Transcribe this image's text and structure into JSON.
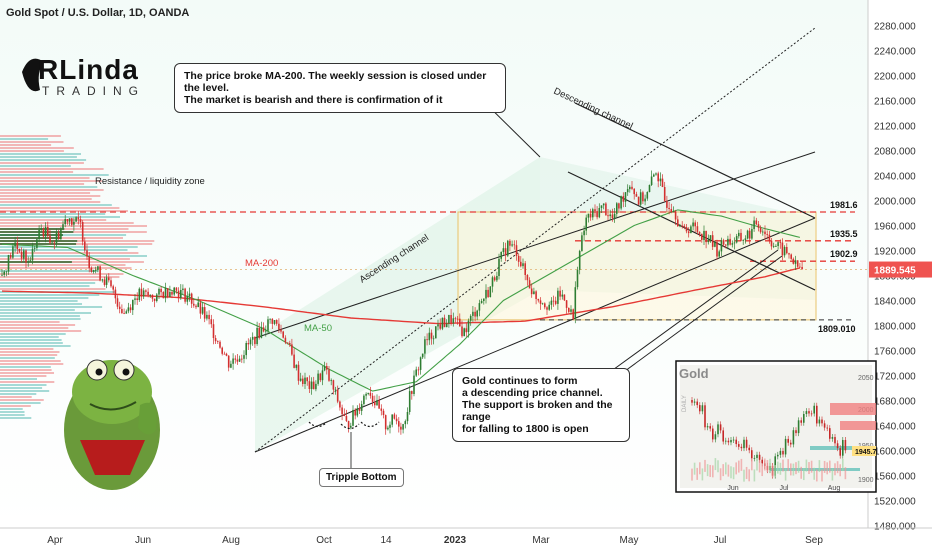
{
  "header": {
    "symbol_line": "Gold Spot / U.S. Dollar, 1D, OANDA"
  },
  "logo": {
    "main": "RLinda",
    "sub": "TRADING"
  },
  "notes": {
    "top": "The price broke MA-200. The weekly session is closed under the level.\nThe market is bearish and there is confirmation of it",
    "bottom": "Gold continues to form\na descending price channel.\nThe support is broken and the range\nfor falling to 1800 is open",
    "tripple": "Tripple Bottom"
  },
  "labels": {
    "resistance": "Resistance / liquidity zone",
    "ma200": "MA-200",
    "ma50": "MA-50",
    "ascending": "Ascending channel",
    "descending": "Descending channel"
  },
  "colors": {
    "up": "#26a69a",
    "down": "#ef5350",
    "ma200": "#e53935",
    "ma50": "#43a047",
    "level": "#e53935",
    "price_tag": "#ef5350"
  },
  "inset": {
    "title": "Gold",
    "y_ticks": [
      "2050",
      "2000",
      "1950",
      "1900"
    ],
    "x_ticks": [
      "Jun",
      "Jul",
      "Aug"
    ],
    "price_tag": "1945.7",
    "side_label": "DAILY"
  },
  "chart_data": {
    "type": "candlestick",
    "y_axis": {
      "ticks": [
        1480,
        1520,
        1560,
        1600,
        1640,
        1680,
        1720,
        1760,
        1800,
        1840,
        1880,
        1920,
        1960,
        2000,
        2040,
        2080,
        2120,
        2160,
        2200,
        2240,
        2280
      ],
      "tick_labels": [
        "1480.000",
        "1520.000",
        "1560.000",
        "1600.000",
        "1640.000",
        "1680.000",
        "1720.000",
        "1760.000",
        "1800.000",
        "1840.000",
        "1880.000",
        "1920.000",
        "1960.000",
        "2000.000",
        "2040.000",
        "2080.000",
        "2120.000",
        "2160.000",
        "2200.000",
        "2240.000",
        "2280.000"
      ],
      "ylim": [
        1457,
        2290
      ]
    },
    "x_axis": {
      "tick_labels": [
        "Apr",
        "Jun",
        "Aug",
        "Oct",
        "14",
        "2023",
        "Mar",
        "May",
        "Jul",
        "Sep"
      ],
      "bold": [
        "2023"
      ]
    },
    "last_price": "1889.545",
    "levels": [
      {
        "value": 1981.6,
        "label": "1981.6"
      },
      {
        "value": 1935.5,
        "label": "1935.5"
      },
      {
        "value": 1902.9,
        "label": "1902.9"
      },
      {
        "value": 1809.01,
        "label": "1809.010"
      }
    ],
    "close_path": [
      [
        0,
        1880
      ],
      [
        6,
        1930
      ],
      [
        12,
        1900
      ],
      [
        18,
        1955
      ],
      [
        24,
        1935
      ],
      [
        30,
        1975
      ],
      [
        36,
        1960
      ],
      [
        40,
        1900
      ],
      [
        48,
        1870
      ],
      [
        56,
        1820
      ],
      [
        62,
        1850
      ],
      [
        70,
        1845
      ],
      [
        78,
        1860
      ],
      [
        86,
        1845
      ],
      [
        94,
        1810
      ],
      [
        100,
        1770
      ],
      [
        104,
        1740
      ],
      [
        110,
        1755
      ],
      [
        118,
        1790
      ],
      [
        124,
        1810
      ],
      [
        130,
        1780
      ],
      [
        136,
        1720
      ],
      [
        142,
        1700
      ],
      [
        148,
        1730
      ],
      [
        154,
        1680
      ],
      [
        158,
        1640
      ],
      [
        162,
        1660
      ],
      [
        168,
        1700
      ],
      [
        172,
        1670
      ],
      [
        176,
        1640
      ],
      [
        180,
        1650
      ],
      [
        184,
        1640
      ],
      [
        188,
        1700
      ],
      [
        194,
        1770
      ],
      [
        200,
        1800
      ],
      [
        206,
        1810
      ],
      [
        212,
        1790
      ],
      [
        218,
        1830
      ],
      [
        224,
        1860
      ],
      [
        228,
        1900
      ],
      [
        232,
        1930
      ],
      [
        236,
        1920
      ],
      [
        240,
        1880
      ],
      [
        244,
        1850
      ],
      [
        248,
        1840
      ],
      [
        252,
        1830
      ],
      [
        256,
        1850
      ],
      [
        260,
        1830
      ],
      [
        262,
        1810
      ],
      [
        264,
        1900
      ],
      [
        268,
        1970
      ],
      [
        272,
        1980
      ],
      [
        276,
        1990
      ],
      [
        280,
        1970
      ],
      [
        284,
        2000
      ],
      [
        288,
        2030
      ],
      [
        292,
        2000
      ],
      [
        296,
        2010
      ],
      [
        300,
        2050
      ],
      [
        304,
        2000
      ],
      [
        308,
        1990
      ],
      [
        312,
        1950
      ],
      [
        316,
        1960
      ],
      [
        320,
        1950
      ],
      [
        324,
        1940
      ],
      [
        328,
        1920
      ],
      [
        332,
        1935
      ],
      [
        336,
        1935
      ],
      [
        340,
        1940
      ],
      [
        344,
        1950
      ],
      [
        346,
        1965
      ],
      [
        350,
        1950
      ],
      [
        354,
        1930
      ],
      [
        358,
        1920
      ],
      [
        362,
        1910
      ],
      [
        364,
        1895
      ],
      [
        367,
        1889.5
      ]
    ],
    "series": [
      {
        "name": "MA-200",
        "values": [
          [
            0,
            1855
          ],
          [
            40,
            1852
          ],
          [
            80,
            1845
          ],
          [
            120,
            1830
          ],
          [
            160,
            1812
          ],
          [
            200,
            1803
          ],
          [
            240,
            1807
          ],
          [
            280,
            1830
          ],
          [
            320,
            1858
          ],
          [
            350,
            1878
          ],
          [
            367,
            1893
          ]
        ]
      },
      {
        "name": "MA-50",
        "values": [
          [
            0,
            1930
          ],
          [
            30,
            1925
          ],
          [
            60,
            1880
          ],
          [
            90,
            1840
          ],
          [
            120,
            1795
          ],
          [
            150,
            1730
          ],
          [
            170,
            1695
          ],
          [
            190,
            1710
          ],
          [
            210,
            1770
          ],
          [
            230,
            1840
          ],
          [
            250,
            1880
          ],
          [
            270,
            1920
          ],
          [
            290,
            1960
          ],
          [
            310,
            1985
          ],
          [
            330,
            1975
          ],
          [
            350,
            1955
          ],
          [
            367,
            1940
          ]
        ]
      }
    ],
    "annotations": [
      "Resistance / liquidity zone",
      "MA-200",
      "MA-50",
      "Ascending channel",
      "Descending channel",
      "Tripple Bottom"
    ]
  }
}
